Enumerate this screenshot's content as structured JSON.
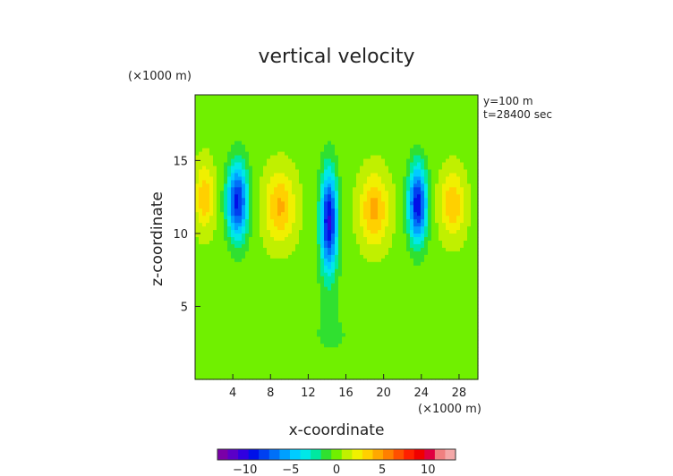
{
  "chart_data": {
    "type": "heatmap",
    "title": "vertical velocity",
    "xlabel": "x-coordinate",
    "ylabel": "z-coordinate",
    "x_unit": "(×1000 m)",
    "y_unit": "(×1000 m)",
    "annotations": [
      "y=100 m",
      "t=28400 sec"
    ],
    "xlim": [
      0,
      30
    ],
    "ylim": [
      0,
      19.5
    ],
    "x_ticks": [
      4,
      8,
      12,
      16,
      20,
      24,
      28
    ],
    "y_ticks": [
      5,
      10,
      15
    ],
    "colorbar": {
      "ticks": [
        -10,
        -5,
        0,
        5,
        10
      ],
      "range": [
        -13,
        13
      ],
      "colors": [
        "#7a00a8",
        "#5a00c8",
        "#3000e0",
        "#0010e8",
        "#0040f0",
        "#0070f8",
        "#00a0ff",
        "#00ccff",
        "#00e8e8",
        "#00e8a0",
        "#30e030",
        "#70f000",
        "#c0f000",
        "#f0f000",
        "#ffd000",
        "#ffa800",
        "#ff8000",
        "#ff5000",
        "#ff2000",
        "#f00000",
        "#e00040",
        "#f08080",
        "#f4a8a8"
      ]
    },
    "background_value": 0.2,
    "cells": [
      {
        "x": 1.0,
        "z": 12.5,
        "value": 3.5,
        "sx": 1.0,
        "sz": 2.2
      },
      {
        "x": 4.5,
        "z": 12.2,
        "value": -9.0,
        "sx": 1.1,
        "sz": 2.6
      },
      {
        "x": 9.0,
        "z": 11.8,
        "value": 4.0,
        "sx": 1.6,
        "sz": 2.4
      },
      {
        "x": 14.2,
        "z": 10.8,
        "value": -10.0,
        "sx": 0.9,
        "sz": 3.4
      },
      {
        "x": 19.0,
        "z": 11.6,
        "value": 4.2,
        "sx": 1.5,
        "sz": 2.4
      },
      {
        "x": 23.6,
        "z": 12.0,
        "value": -9.5,
        "sx": 1.0,
        "sz": 2.6
      },
      {
        "x": 27.3,
        "z": 12.0,
        "value": 3.6,
        "sx": 1.3,
        "sz": 2.2
      },
      {
        "x": 14.5,
        "z": 3.0,
        "value": -0.8,
        "sx": 6.0,
        "sz": 3.5
      },
      {
        "x": 16.0,
        "z": 18.5,
        "value": -0.6,
        "sx": 10.0,
        "sz": 1.3
      }
    ]
  }
}
